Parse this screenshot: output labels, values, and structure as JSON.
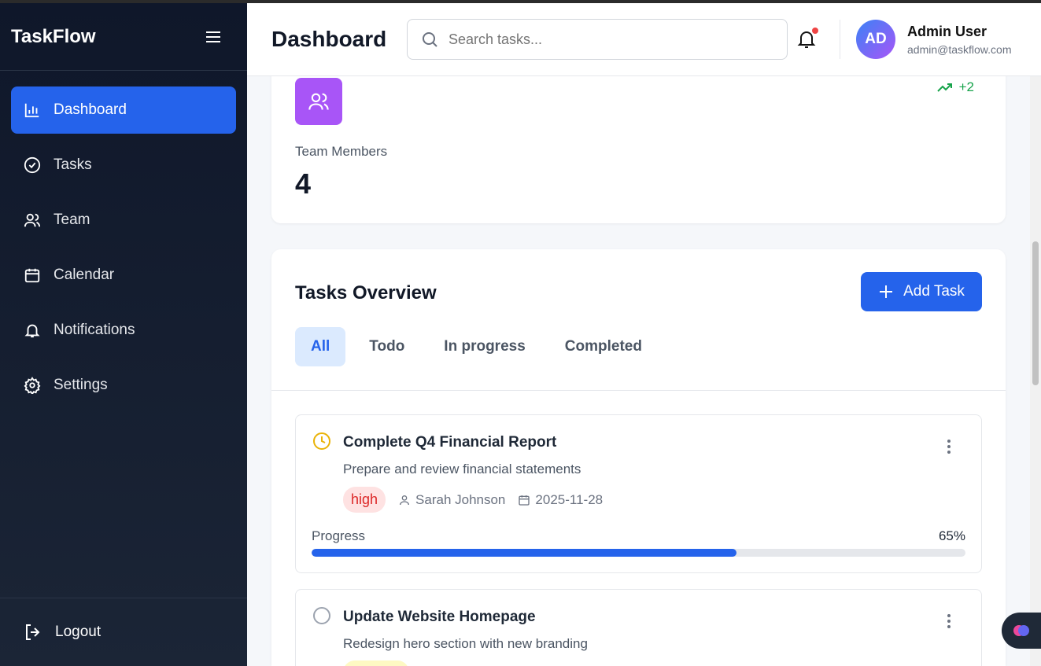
{
  "app": {
    "name": "TaskFlow"
  },
  "sidebar": {
    "items": [
      {
        "label": "Dashboard",
        "icon": "bar-chart-icon",
        "active": true
      },
      {
        "label": "Tasks",
        "icon": "check-circle-icon"
      },
      {
        "label": "Team",
        "icon": "users-icon"
      },
      {
        "label": "Calendar",
        "icon": "calendar-icon"
      },
      {
        "label": "Notifications",
        "icon": "bell-icon"
      },
      {
        "label": "Settings",
        "icon": "gear-icon"
      }
    ],
    "logout": "Logout"
  },
  "header": {
    "title": "Dashboard",
    "search_placeholder": "Search tasks...",
    "user": {
      "initials": "AD",
      "name": "Admin User",
      "email": "admin@taskflow.com"
    }
  },
  "stat": {
    "label": "Team Members",
    "value": "4",
    "trend": "+2"
  },
  "overview": {
    "title": "Tasks Overview",
    "add_label": "Add Task",
    "tabs": [
      "All",
      "Todo",
      "In progress",
      "Completed"
    ],
    "active_tab": "All"
  },
  "tasks": [
    {
      "title": "Complete Q4 Financial Report",
      "description": "Prepare and review financial statements",
      "priority": "high",
      "assignee": "Sarah Johnson",
      "due": "2025-11-28",
      "progress_label": "Progress",
      "progress": 65,
      "progress_text": "65%",
      "status": "in-progress"
    },
    {
      "title": "Update Website Homepage",
      "description": "Redesign hero section with new branding",
      "status": "todo"
    }
  ],
  "colors": {
    "accent": "#2563eb",
    "sidebar": "#0f172a",
    "high": "#dc2626",
    "trend": "#16a34a",
    "team_icon": "#a855f7"
  }
}
